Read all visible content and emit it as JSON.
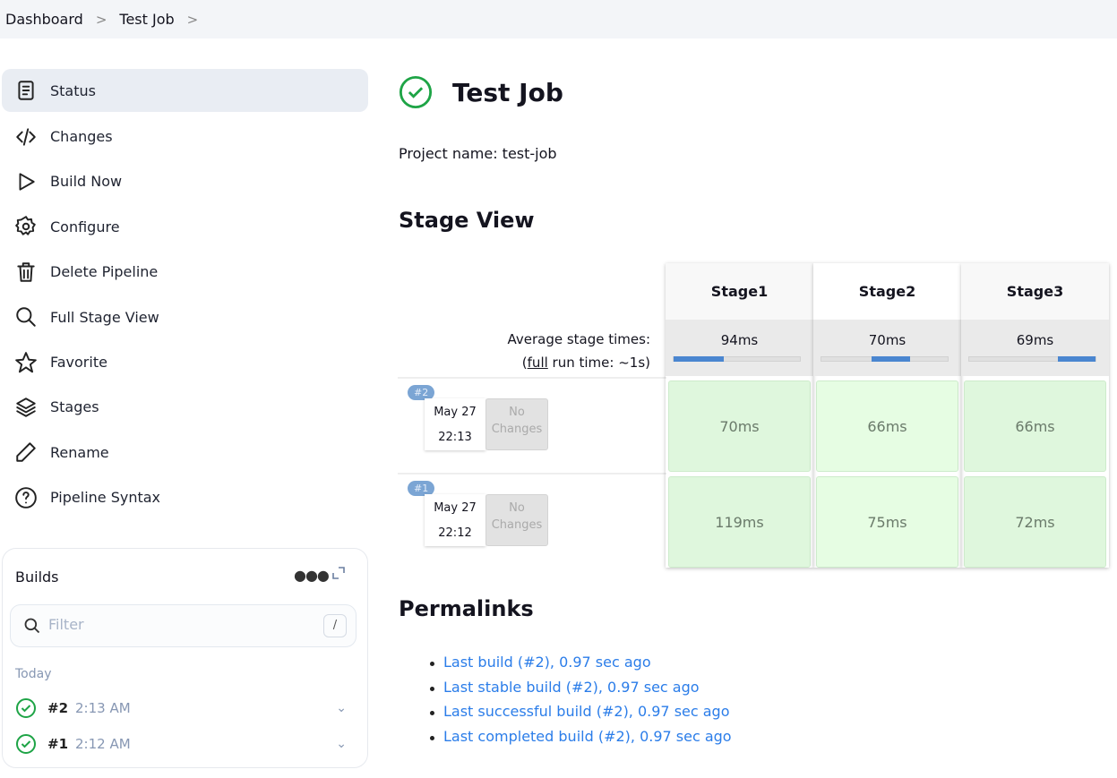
{
  "breadcrumb": [
    "Dashboard",
    "Test Job"
  ],
  "sidebar": {
    "items": [
      {
        "label": "Status",
        "icon": "document-icon"
      },
      {
        "label": "Changes",
        "icon": "code-icon"
      },
      {
        "label": "Build Now",
        "icon": "play-icon"
      },
      {
        "label": "Configure",
        "icon": "gear-icon"
      },
      {
        "label": "Delete Pipeline",
        "icon": "trash-icon"
      },
      {
        "label": "Full Stage View",
        "icon": "search-icon"
      },
      {
        "label": "Favorite",
        "icon": "star-icon"
      },
      {
        "label": "Stages",
        "icon": "layers-icon"
      },
      {
        "label": "Rename",
        "icon": "pencil-icon"
      },
      {
        "label": "Pipeline Syntax",
        "icon": "help-icon"
      }
    ]
  },
  "builds": {
    "title": "Builds",
    "filter_placeholder": "Filter",
    "shortcut": "/",
    "group": "Today",
    "items": [
      {
        "num": "#2",
        "time": "2:13 AM"
      },
      {
        "num": "#1",
        "time": "2:12 AM"
      }
    ]
  },
  "main": {
    "title": "Test Job",
    "project_name": "Project name: test-job",
    "stage_view_title": "Stage View",
    "permalinks_title": "Permalinks"
  },
  "stage_view": {
    "avg_label": "Average stage times:",
    "full_prefix": "(",
    "full_link": "full",
    "full_suffix": " run time: ~1s)",
    "stages": [
      {
        "name": "Stage1",
        "avg": "94ms",
        "bar": [
          0,
          0.4
        ]
      },
      {
        "name": "Stage2",
        "avg": "70ms",
        "bar": [
          0.4,
          0.7
        ]
      },
      {
        "name": "Stage3",
        "avg": "69ms",
        "bar": [
          0.7,
          1
        ]
      }
    ],
    "runs": [
      {
        "badge": "#2",
        "date": "May 27",
        "time": "22:13",
        "changes": "No Changes",
        "durations": [
          "70ms",
          "66ms",
          "66ms"
        ]
      },
      {
        "badge": "#1",
        "date": "May 27",
        "time": "22:12",
        "changes": "No Changes",
        "durations": [
          "119ms",
          "75ms",
          "72ms"
        ]
      }
    ]
  },
  "permalinks": [
    "Last build (#2), 0.97 sec ago",
    "Last stable build (#2), 0.97 sec ago",
    "Last successful build (#2), 0.97 sec ago",
    "Last completed build (#2), 0.97 sec ago"
  ],
  "colors": {
    "success": "#1ea446",
    "link": "#2b7de9",
    "stage_success": "#dff7dd",
    "bar": "#4a86d0"
  }
}
